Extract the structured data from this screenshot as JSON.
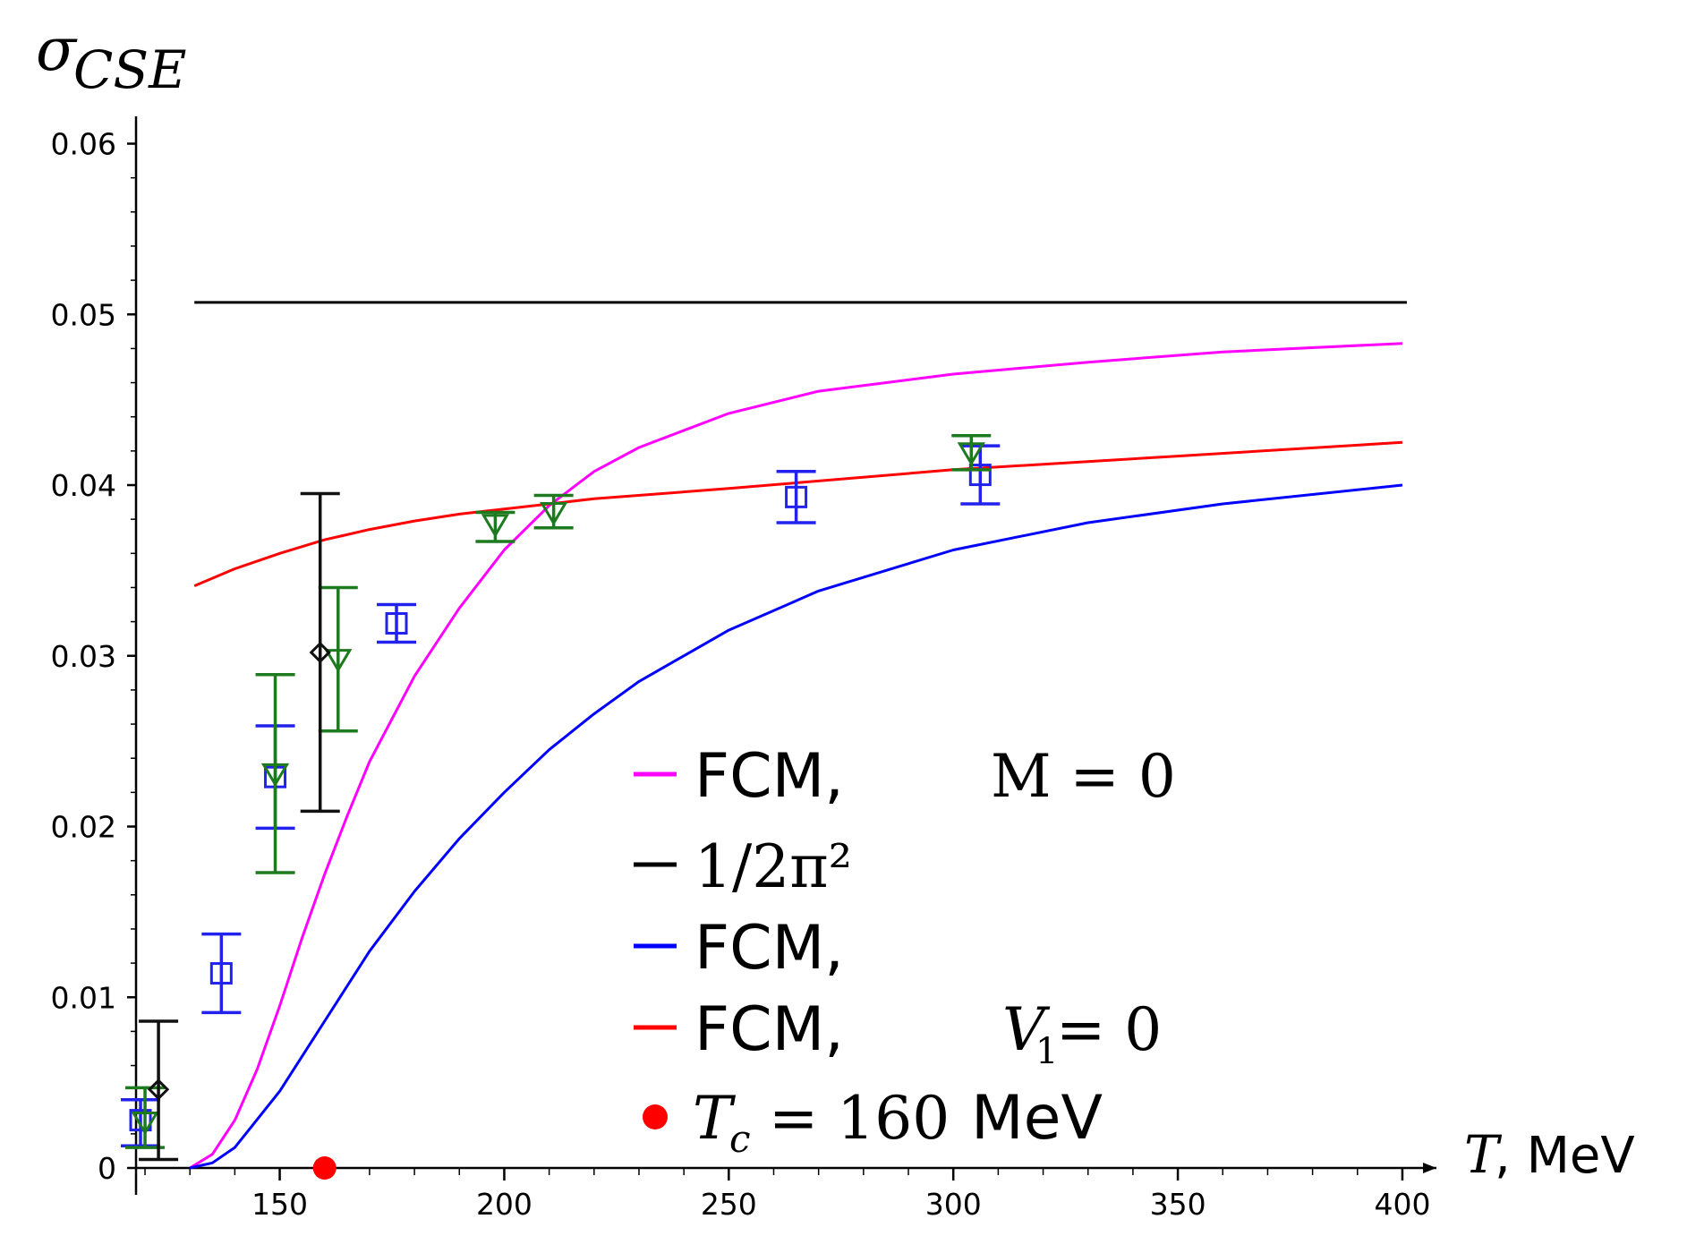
{
  "chart_data": {
    "type": "line",
    "ylabel_symbol": "σ",
    "ylabel_sub": "CSE",
    "xlabel_var": "T",
    "xlabel_unit": ", MeV",
    "xlim": [
      118,
      402
    ],
    "ylim": [
      0,
      0.0616
    ],
    "x_ticks": [
      150,
      200,
      250,
      300,
      350,
      400
    ],
    "x_tick_labels": [
      "150",
      "200",
      "250",
      "300",
      "350",
      "400"
    ],
    "y_ticks": [
      0,
      0.01,
      0.02,
      0.03,
      0.04,
      0.05,
      0.06
    ],
    "y_tick_labels": [
      "0",
      "0.01",
      "0.02",
      "0.03",
      "0.04",
      "0.05",
      "0.06"
    ],
    "series": [
      {
        "color": "#ff00ff",
        "x": [
          130,
          135,
          140,
          145,
          150,
          155,
          160,
          165,
          170,
          180,
          190,
          200,
          210,
          220,
          230,
          250,
          270,
          300,
          330,
          360,
          400
        ],
        "y": [
          0,
          0.0008,
          0.0028,
          0.0058,
          0.0095,
          0.0135,
          0.0172,
          0.0206,
          0.0238,
          0.0288,
          0.0328,
          0.0362,
          0.0388,
          0.0408,
          0.0422,
          0.0442,
          0.0455,
          0.0465,
          0.0472,
          0.0478,
          0.0483
        ]
      },
      {
        "color": "#000000",
        "x": [
          131,
          401
        ],
        "y": [
          0.0507,
          0.0507
        ]
      },
      {
        "color": "#0000ff",
        "x": [
          130,
          135,
          140,
          150,
          160,
          170,
          180,
          190,
          200,
          210,
          220,
          230,
          250,
          270,
          300,
          330,
          360,
          400
        ],
        "y": [
          0,
          0.0003,
          0.0012,
          0.0045,
          0.0086,
          0.0127,
          0.0162,
          0.0193,
          0.022,
          0.0245,
          0.0266,
          0.0285,
          0.0315,
          0.0338,
          0.0362,
          0.0378,
          0.0389,
          0.04
        ]
      },
      {
        "color": "#ff0000",
        "x": [
          131,
          140,
          150,
          160,
          170,
          180,
          190,
          200,
          220,
          250,
          300,
          350,
          400
        ],
        "y": [
          0.0341,
          0.0351,
          0.036,
          0.0368,
          0.0374,
          0.0379,
          0.0383,
          0.0386,
          0.0392,
          0.0398,
          0.0409,
          0.0417,
          0.0425
        ]
      }
    ],
    "tc_marker": {
      "x": 160,
      "y": 0,
      "color": "#ff0000"
    },
    "error_points": [
      {
        "x": 119,
        "y": 0.0028,
        "lo": 0.0013,
        "hi": 0.004,
        "marker": "square",
        "color": "#2222ee"
      },
      {
        "x": 137,
        "y": 0.0114,
        "lo": 0.0091,
        "hi": 0.0137,
        "marker": "square",
        "color": "#2222ee"
      },
      {
        "x": 149,
        "y": 0.0229,
        "lo": 0.0199,
        "hi": 0.0259,
        "marker": "square",
        "color": "#2222ee"
      },
      {
        "x": 176,
        "y": 0.0319,
        "lo": 0.0308,
        "hi": 0.033,
        "marker": "square",
        "color": "#2222ee"
      },
      {
        "x": 265,
        "y": 0.0393,
        "lo": 0.0378,
        "hi": 0.0408,
        "marker": "square",
        "color": "#2222ee"
      },
      {
        "x": 306,
        "y": 0.0406,
        "lo": 0.0389,
        "hi": 0.0423,
        "marker": "square",
        "color": "#2222ee"
      },
      {
        "x": 120,
        "y": 0.0027,
        "lo": 0.0012,
        "hi": 0.0047,
        "marker": "triangle",
        "color": "#1e7a1e"
      },
      {
        "x": 149,
        "y": 0.0231,
        "lo": 0.0173,
        "hi": 0.0289,
        "marker": "triangle",
        "color": "#1e7a1e"
      },
      {
        "x": 163,
        "y": 0.0298,
        "lo": 0.0256,
        "hi": 0.034,
        "marker": "triangle",
        "color": "#1e7a1e"
      },
      {
        "x": 198,
        "y": 0.0377,
        "lo": 0.0367,
        "hi": 0.0384,
        "marker": "triangle",
        "color": "#1e7a1e"
      },
      {
        "x": 211,
        "y": 0.0384,
        "lo": 0.0375,
        "hi": 0.0394,
        "marker": "triangle",
        "color": "#1e7a1e"
      },
      {
        "x": 304,
        "y": 0.0419,
        "lo": 0.0409,
        "hi": 0.0429,
        "marker": "triangle",
        "color": "#1e7a1e"
      },
      {
        "x": 123,
        "y": 0.0046,
        "lo": 0.0005,
        "hi": 0.0086,
        "marker": "diamond",
        "color": "#111111"
      },
      {
        "x": 159,
        "y": 0.0302,
        "lo": 0.0209,
        "hi": 0.0395,
        "marker": "diamond",
        "color": "#111111"
      }
    ]
  },
  "legend": {
    "items": [
      {
        "color": "#ff00ff",
        "label": "FCM,",
        "extra": "M = 0",
        "extra_style": "roman"
      },
      {
        "color": "#000000",
        "label": "1/2π²",
        "extra": "",
        "extra_style": "math"
      },
      {
        "color": "#0000ff",
        "label": "FCM,",
        "extra": "",
        "extra_style": "roman"
      },
      {
        "color": "#ff0000",
        "label": "FCM,",
        "extra_var": "V",
        "extra_sub": "1",
        "extra": "= 0",
        "extra_style": "var"
      }
    ],
    "tc": {
      "color": "#ff0000",
      "var": "T",
      "sub": "c",
      "eq": " = 160 ",
      "unit": "MeV"
    }
  }
}
